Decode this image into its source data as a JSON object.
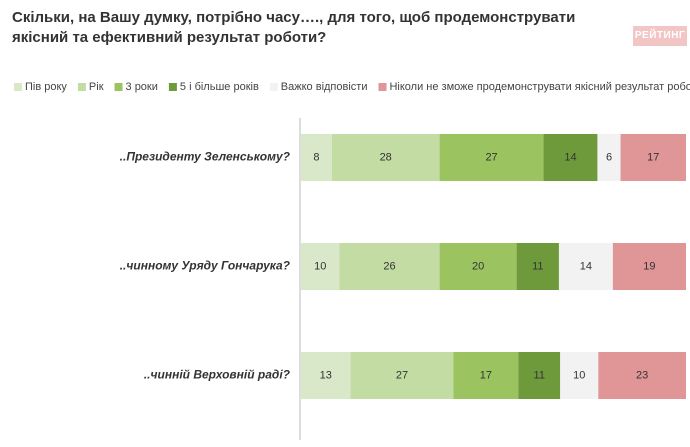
{
  "logo": "РЕЙТИНГ",
  "chart_data": {
    "type": "stacked-bar-horizontal",
    "title": "Скільки, на Вашу думку, потрібно часу…., для того, щоб продемонструвати якісний та ефективний результат роботи?",
    "categories": [
      "..Президенту Зеленському?",
      "..чинному Уряду Гончарука?",
      "..чинній Верховній раді?"
    ],
    "series": [
      {
        "name": "Пів року",
        "color": "#d9e8c8",
        "values": [
          8,
          10,
          13
        ]
      },
      {
        "name": "Рік",
        "color": "#c3dca4",
        "values": [
          28,
          26,
          27
        ]
      },
      {
        "name": "3 роки",
        "color": "#9bc461",
        "values": [
          27,
          20,
          17
        ]
      },
      {
        "name": "5 і більше років",
        "color": "#6f9a3b",
        "values": [
          14,
          11,
          11
        ]
      },
      {
        "name": "Важко відповісти",
        "color": "#f2f2f2",
        "values": [
          6,
          14,
          10
        ]
      },
      {
        "name": "Ніколи не зможе продемонструвати якісний результат роботи",
        "color": "#e09597",
        "values": [
          17,
          19,
          23
        ]
      }
    ],
    "legend": "top"
  }
}
